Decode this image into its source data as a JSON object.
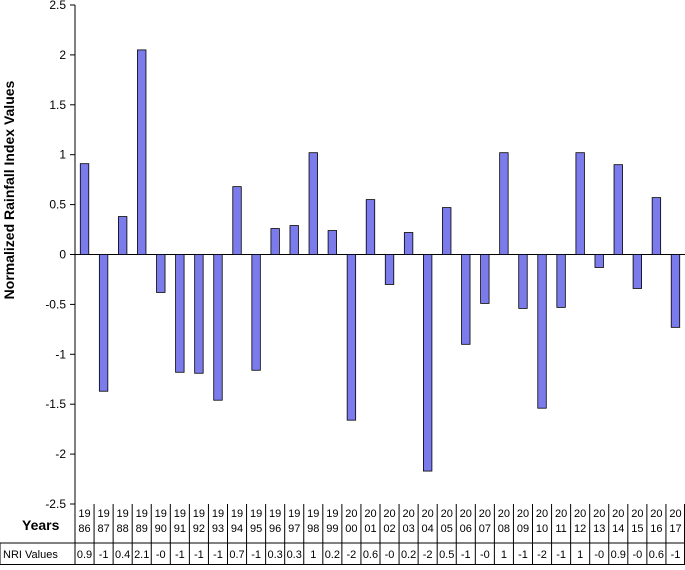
{
  "chart_data": {
    "type": "bar",
    "title": "",
    "xlabel": "",
    "ylabel": "Normalized Rainfall Index Values",
    "ylim": [
      -2.5,
      2.5
    ],
    "y_ticks": [
      "2.5",
      "2",
      "1.5",
      "1",
      "0.5",
      "0",
      "-0.5",
      "-1",
      "-1.5",
      "-2",
      "-2.5"
    ],
    "grid": false,
    "legend": "none",
    "bar_color": "#7b7bec",
    "bar_edge_color": "#000000",
    "categories": [
      "1986",
      "1987",
      "1988",
      "1989",
      "1990",
      "1991",
      "1992",
      "1993",
      "1994",
      "1995",
      "1996",
      "1997",
      "1998",
      "1999",
      "2000",
      "2001",
      "2002",
      "2003",
      "2004",
      "2005",
      "2006",
      "2007",
      "2008",
      "2009",
      "2010",
      "2011",
      "2012",
      "2013",
      "2014",
      "2015",
      "2016",
      "2017"
    ],
    "year_labels": [
      [
        "19",
        "86"
      ],
      [
        "19",
        "87"
      ],
      [
        "19",
        "88"
      ],
      [
        "19",
        "89"
      ],
      [
        "19",
        "90"
      ],
      [
        "19",
        "91"
      ],
      [
        "19",
        "92"
      ],
      [
        "19",
        "93"
      ],
      [
        "19",
        "94"
      ],
      [
        "19",
        "95"
      ],
      [
        "19",
        "96"
      ],
      [
        "19",
        "97"
      ],
      [
        "19",
        "98"
      ],
      [
        "19",
        "99"
      ],
      [
        "20",
        "00"
      ],
      [
        "20",
        "01"
      ],
      [
        "20",
        "02"
      ],
      [
        "20",
        "03"
      ],
      [
        "20",
        "04"
      ],
      [
        "20",
        "05"
      ],
      [
        "20",
        "06"
      ],
      [
        "20",
        "07"
      ],
      [
        "20",
        "08"
      ],
      [
        "20",
        "09"
      ],
      [
        "20",
        "10"
      ],
      [
        "20",
        "11"
      ],
      [
        "20",
        "12"
      ],
      [
        "20",
        "13"
      ],
      [
        "20",
        "14"
      ],
      [
        "20",
        "15"
      ],
      [
        "20",
        "16"
      ],
      [
        "20",
        "17"
      ]
    ],
    "values": [
      0.91,
      -1.37,
      0.38,
      2.05,
      -0.38,
      -1.18,
      -1.19,
      -1.46,
      0.68,
      -1.16,
      0.26,
      0.29,
      1.02,
      0.24,
      -1.66,
      0.55,
      -0.3,
      0.22,
      -2.17,
      0.47,
      -0.9,
      -0.49,
      1.02,
      -0.54,
      -1.54,
      -0.53,
      1.02,
      -0.13,
      0.9,
      -0.34,
      0.57,
      -0.73
    ],
    "table": {
      "years_header": "Years",
      "values_header": "NRI Values",
      "nri_values": [
        "0.9",
        "-1",
        "0.4",
        "2.1",
        "-0",
        "-1",
        "-1",
        "-1",
        "0.7",
        "-1",
        "0.3",
        "0.3",
        "1",
        "0.2",
        "-2",
        "0.6",
        "-0",
        "0.2",
        "-2",
        "0.5",
        "-1",
        "-0",
        "1",
        "-1",
        "-2",
        "-1",
        "1",
        "-0",
        "0.9",
        "-0",
        "0.6",
        "-1"
      ]
    }
  }
}
